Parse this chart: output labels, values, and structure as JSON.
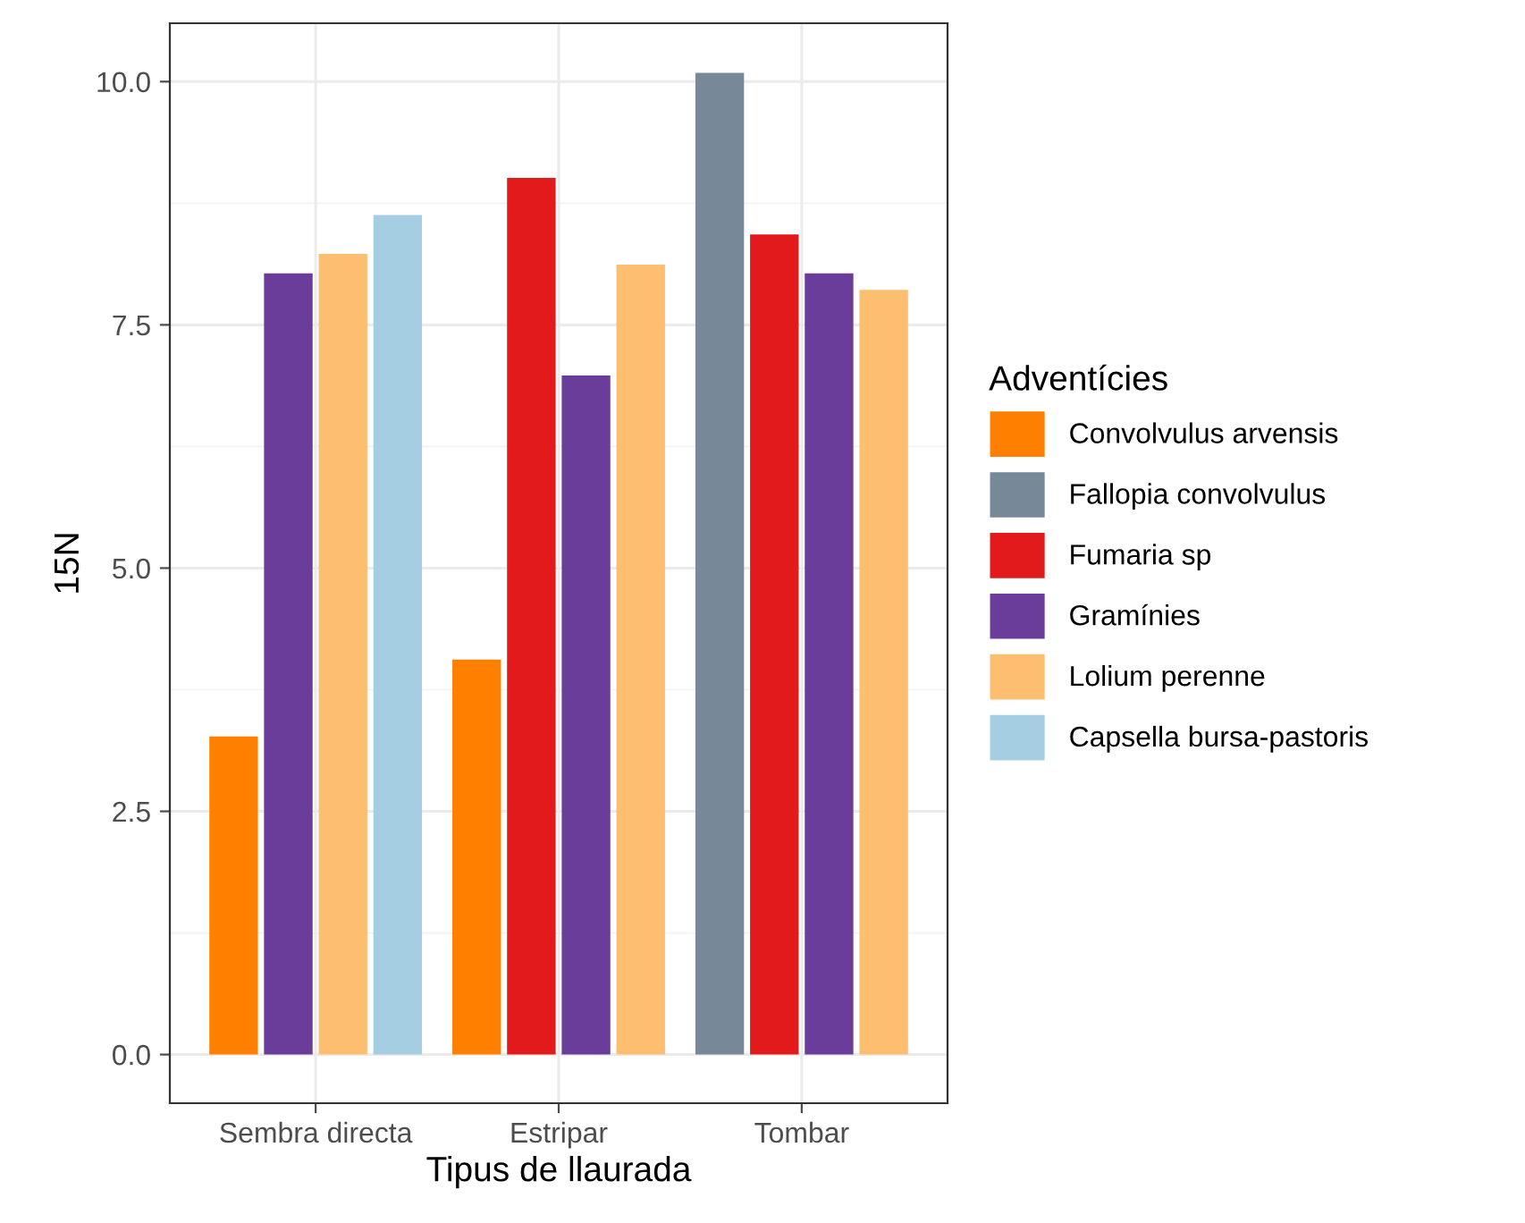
{
  "chart_data": {
    "type": "bar",
    "xlabel": "Tipus de llaurada",
    "ylabel": "15N",
    "legend_title": "Adventícies",
    "categories": [
      "Sembra directa",
      "Estripar",
      "Tombar"
    ],
    "series": [
      {
        "name": "Convolvulus arvensis",
        "color": "#ff7f00",
        "values": [
          3.27,
          4.06,
          null
        ]
      },
      {
        "name": "Fallopia convolvulus",
        "color": "#778899",
        "values": [
          null,
          null,
          10.09
        ]
      },
      {
        "name": "Fumaria sp",
        "color": "#e31a1c",
        "values": [
          null,
          9.01,
          8.43
        ]
      },
      {
        "name": "Gramínies",
        "color": "#6a3d9a",
        "values": [
          8.03,
          6.98,
          8.03
        ]
      },
      {
        "name": "Lolium perenne",
        "color": "#fdbf6f",
        "values": [
          8.23,
          8.12,
          7.86
        ]
      },
      {
        "name": "Capsella bursa-pastoris",
        "color": "#a6cee3",
        "values": [
          8.63,
          null,
          null
        ]
      }
    ],
    "ylim": [
      -0.5,
      10.6
    ],
    "yticks": [
      {
        "value": 0,
        "label": "0.0"
      },
      2.5,
      {
        "value": 5,
        "label": "5.0"
      },
      7.5,
      {
        "value": 10,
        "label": "10.0"
      }
    ],
    "grid": true,
    "legend": "right"
  }
}
